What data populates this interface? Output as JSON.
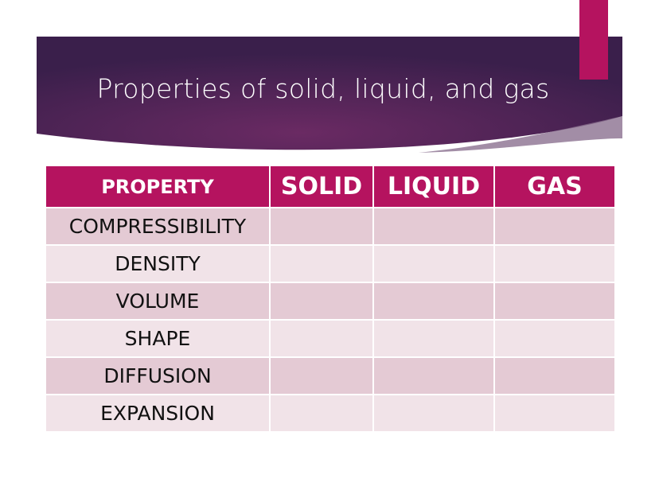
{
  "slide": {
    "title": "Properties of solid, liquid, and gas",
    "colors": {
      "banner": "#4a2258",
      "accent": "#b5135f",
      "row_odd": "#e4cad4",
      "row_even": "#f1e3e8"
    },
    "table": {
      "headers": [
        "PROPERTY",
        "SOLID",
        "LIQUID",
        "GAS"
      ],
      "rows": [
        [
          "COMPRESSIBILITY",
          "",
          "",
          ""
        ],
        [
          "DENSITY",
          "",
          "",
          ""
        ],
        [
          "VOLUME",
          "",
          "",
          ""
        ],
        [
          "SHAPE",
          "",
          "",
          ""
        ],
        [
          "DIFFUSION",
          "",
          "",
          ""
        ],
        [
          "EXPANSION",
          "",
          "",
          ""
        ]
      ]
    }
  }
}
